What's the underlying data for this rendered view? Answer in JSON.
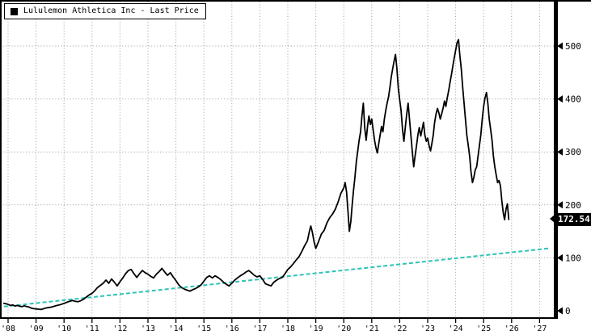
{
  "legend": {
    "label": "Lululemon Athletica Inc - Last Price",
    "swatch_color": "#000000"
  },
  "last_price": {
    "value": "172.54"
  },
  "colors": {
    "price_line": "#000000",
    "trend_line": "#2ec4b6",
    "grid": "#9a9a9a",
    "axis": "#000000",
    "background": "#ffffff"
  },
  "chart_data": {
    "type": "line",
    "title": "Lululemon Athletica Inc - Last Price",
    "grid": true,
    "legend_position": "top-left",
    "x_axis": {
      "start_year": 2008,
      "tick_labels": [
        "'08",
        "'09",
        "'10",
        "'11",
        "'12",
        "'13",
        "'14",
        "'15",
        "'16",
        "'17",
        "'18",
        "'19",
        "'20",
        "'21",
        "'22",
        "'23",
        "'24",
        "'25",
        "'26",
        "'27"
      ]
    },
    "y_axis": {
      "side": "right",
      "ticks": [
        0,
        100,
        200,
        300,
        400,
        500
      ],
      "range": [
        0,
        560
      ]
    },
    "last_price": 172.54,
    "series": [
      {
        "name": "Lululemon Athletica Inc - Last Price",
        "color": "#000000",
        "line_style": "solid",
        "points": [
          [
            2007.85,
            14
          ],
          [
            2007.95,
            13
          ],
          [
            2008.0,
            12
          ],
          [
            2008.08,
            10
          ],
          [
            2008.17,
            11
          ],
          [
            2008.25,
            9
          ],
          [
            2008.33,
            10
          ],
          [
            2008.42,
            8.5
          ],
          [
            2008.5,
            8
          ],
          [
            2008.58,
            9.5
          ],
          [
            2008.67,
            8
          ],
          [
            2008.75,
            7
          ],
          [
            2008.83,
            5
          ],
          [
            2008.92,
            4
          ],
          [
            2009.0,
            3.5
          ],
          [
            2009.08,
            3
          ],
          [
            2009.17,
            2.5
          ],
          [
            2009.25,
            3.5
          ],
          [
            2009.33,
            5
          ],
          [
            2009.42,
            6
          ],
          [
            2009.5,
            6.5
          ],
          [
            2009.58,
            7.5
          ],
          [
            2009.67,
            9
          ],
          [
            2009.75,
            10
          ],
          [
            2009.83,
            11
          ],
          [
            2009.92,
            12.5
          ],
          [
            2010.0,
            14
          ],
          [
            2010.1,
            16
          ],
          [
            2010.2,
            18
          ],
          [
            2010.3,
            19.5
          ],
          [
            2010.4,
            18
          ],
          [
            2010.5,
            17
          ],
          [
            2010.6,
            19
          ],
          [
            2010.7,
            22
          ],
          [
            2010.8,
            26
          ],
          [
            2010.9,
            30
          ],
          [
            2011.0,
            33
          ],
          [
            2011.1,
            38
          ],
          [
            2011.2,
            44
          ],
          [
            2011.3,
            48
          ],
          [
            2011.4,
            52
          ],
          [
            2011.5,
            58
          ],
          [
            2011.6,
            52
          ],
          [
            2011.7,
            60
          ],
          [
            2011.8,
            54
          ],
          [
            2011.9,
            47
          ],
          [
            2012.0,
            55
          ],
          [
            2012.1,
            62
          ],
          [
            2012.2,
            70
          ],
          [
            2012.3,
            76
          ],
          [
            2012.4,
            78
          ],
          [
            2012.5,
            70
          ],
          [
            2012.6,
            63
          ],
          [
            2012.7,
            70
          ],
          [
            2012.8,
            76
          ],
          [
            2012.9,
            72
          ],
          [
            2013.0,
            69
          ],
          [
            2013.1,
            65
          ],
          [
            2013.2,
            62
          ],
          [
            2013.3,
            69
          ],
          [
            2013.4,
            74
          ],
          [
            2013.5,
            80
          ],
          [
            2013.6,
            73
          ],
          [
            2013.7,
            67
          ],
          [
            2013.8,
            72
          ],
          [
            2013.9,
            64
          ],
          [
            2014.0,
            57
          ],
          [
            2014.1,
            49
          ],
          [
            2014.2,
            44
          ],
          [
            2014.3,
            41
          ],
          [
            2014.4,
            39
          ],
          [
            2014.5,
            37
          ],
          [
            2014.6,
            40
          ],
          [
            2014.7,
            42
          ],
          [
            2014.8,
            45
          ],
          [
            2014.9,
            49
          ],
          [
            2015.0,
            56
          ],
          [
            2015.1,
            63
          ],
          [
            2015.2,
            66
          ],
          [
            2015.3,
            62
          ],
          [
            2015.4,
            66
          ],
          [
            2015.5,
            63
          ],
          [
            2015.6,
            59
          ],
          [
            2015.7,
            54
          ],
          [
            2015.8,
            50
          ],
          [
            2015.9,
            47
          ],
          [
            2016.0,
            52
          ],
          [
            2016.1,
            58
          ],
          [
            2016.2,
            62
          ],
          [
            2016.3,
            66
          ],
          [
            2016.4,
            69
          ],
          [
            2016.5,
            73
          ],
          [
            2016.6,
            76
          ],
          [
            2016.7,
            72
          ],
          [
            2016.8,
            67
          ],
          [
            2016.9,
            64
          ],
          [
            2017.0,
            66
          ],
          [
            2017.1,
            59
          ],
          [
            2017.2,
            51
          ],
          [
            2017.3,
            49
          ],
          [
            2017.4,
            47
          ],
          [
            2017.5,
            54
          ],
          [
            2017.6,
            58
          ],
          [
            2017.7,
            61
          ],
          [
            2017.8,
            63
          ],
          [
            2017.9,
            70
          ],
          [
            2018.0,
            78
          ],
          [
            2018.1,
            83
          ],
          [
            2018.2,
            89
          ],
          [
            2018.3,
            96
          ],
          [
            2018.4,
            102
          ],
          [
            2018.5,
            112
          ],
          [
            2018.6,
            123
          ],
          [
            2018.7,
            132
          ],
          [
            2018.78,
            152
          ],
          [
            2018.82,
            160
          ],
          [
            2018.88,
            148
          ],
          [
            2018.94,
            130
          ],
          [
            2019.0,
            118
          ],
          [
            2019.1,
            131
          ],
          [
            2019.2,
            145
          ],
          [
            2019.3,
            152
          ],
          [
            2019.4,
            166
          ],
          [
            2019.5,
            176
          ],
          [
            2019.6,
            183
          ],
          [
            2019.7,
            192
          ],
          [
            2019.8,
            206
          ],
          [
            2019.9,
            222
          ],
          [
            2020.0,
            232
          ],
          [
            2020.05,
            242
          ],
          [
            2020.1,
            224
          ],
          [
            2020.15,
            188
          ],
          [
            2020.2,
            150
          ],
          [
            2020.25,
            168
          ],
          [
            2020.3,
            200
          ],
          [
            2020.35,
            228
          ],
          [
            2020.4,
            252
          ],
          [
            2020.45,
            282
          ],
          [
            2020.5,
            302
          ],
          [
            2020.55,
            322
          ],
          [
            2020.6,
            338
          ],
          [
            2020.65,
            368
          ],
          [
            2020.7,
            392
          ],
          [
            2020.75,
            344
          ],
          [
            2020.8,
            322
          ],
          [
            2020.85,
            348
          ],
          [
            2020.9,
            368
          ],
          [
            2020.95,
            352
          ],
          [
            2021.0,
            362
          ],
          [
            2021.05,
            342
          ],
          [
            2021.1,
            322
          ],
          [
            2021.15,
            308
          ],
          [
            2021.2,
            298
          ],
          [
            2021.25,
            316
          ],
          [
            2021.3,
            332
          ],
          [
            2021.35,
            348
          ],
          [
            2021.4,
            338
          ],
          [
            2021.45,
            362
          ],
          [
            2021.5,
            378
          ],
          [
            2021.55,
            392
          ],
          [
            2021.6,
            404
          ],
          [
            2021.65,
            422
          ],
          [
            2021.7,
            442
          ],
          [
            2021.75,
            458
          ],
          [
            2021.8,
            472
          ],
          [
            2021.85,
            484
          ],
          [
            2021.9,
            458
          ],
          [
            2021.95,
            420
          ],
          [
            2022.0,
            398
          ],
          [
            2022.05,
            378
          ],
          [
            2022.1,
            342
          ],
          [
            2022.15,
            320
          ],
          [
            2022.2,
            346
          ],
          [
            2022.25,
            372
          ],
          [
            2022.3,
            392
          ],
          [
            2022.35,
            362
          ],
          [
            2022.4,
            332
          ],
          [
            2022.45,
            300
          ],
          [
            2022.5,
            272
          ],
          [
            2022.55,
            292
          ],
          [
            2022.6,
            312
          ],
          [
            2022.65,
            332
          ],
          [
            2022.7,
            346
          ],
          [
            2022.75,
            330
          ],
          [
            2022.8,
            342
          ],
          [
            2022.85,
            356
          ],
          [
            2022.9,
            332
          ],
          [
            2022.95,
            320
          ],
          [
            2023.0,
            326
          ],
          [
            2023.05,
            312
          ],
          [
            2023.1,
            302
          ],
          [
            2023.15,
            316
          ],
          [
            2023.2,
            332
          ],
          [
            2023.25,
            356
          ],
          [
            2023.3,
            372
          ],
          [
            2023.35,
            382
          ],
          [
            2023.4,
            374
          ],
          [
            2023.45,
            362
          ],
          [
            2023.5,
            372
          ],
          [
            2023.55,
            382
          ],
          [
            2023.6,
            396
          ],
          [
            2023.65,
            386
          ],
          [
            2023.7,
            402
          ],
          [
            2023.75,
            416
          ],
          [
            2023.8,
            432
          ],
          [
            2023.85,
            446
          ],
          [
            2023.9,
            462
          ],
          [
            2023.95,
            478
          ],
          [
            2024.0,
            492
          ],
          [
            2024.05,
            506
          ],
          [
            2024.1,
            512
          ],
          [
            2024.15,
            482
          ],
          [
            2024.2,
            458
          ],
          [
            2024.25,
            422
          ],
          [
            2024.3,
            392
          ],
          [
            2024.35,
            362
          ],
          [
            2024.4,
            332
          ],
          [
            2024.45,
            312
          ],
          [
            2024.5,
            292
          ],
          [
            2024.55,
            262
          ],
          [
            2024.6,
            242
          ],
          [
            2024.65,
            252
          ],
          [
            2024.7,
            266
          ],
          [
            2024.75,
            272
          ],
          [
            2024.8,
            292
          ],
          [
            2024.85,
            312
          ],
          [
            2024.9,
            332
          ],
          [
            2024.95,
            362
          ],
          [
            2025.0,
            386
          ],
          [
            2025.05,
            402
          ],
          [
            2025.1,
            412
          ],
          [
            2025.15,
            392
          ],
          [
            2025.2,
            362
          ],
          [
            2025.25,
            342
          ],
          [
            2025.3,
            322
          ],
          [
            2025.35,
            292
          ],
          [
            2025.4,
            272
          ],
          [
            2025.45,
            256
          ],
          [
            2025.5,
            242
          ],
          [
            2025.55,
            246
          ],
          [
            2025.6,
            236
          ],
          [
            2025.65,
            208
          ],
          [
            2025.7,
            186
          ],
          [
            2025.75,
            172
          ],
          [
            2025.8,
            192
          ],
          [
            2025.85,
            202
          ],
          [
            2025.9,
            172.54
          ]
        ]
      },
      {
        "name": "trend-line",
        "color": "#2ec4b6",
        "line_style": "dashed",
        "points": [
          [
            2007.85,
            8
          ],
          [
            2027.35,
            118
          ]
        ]
      }
    ]
  }
}
